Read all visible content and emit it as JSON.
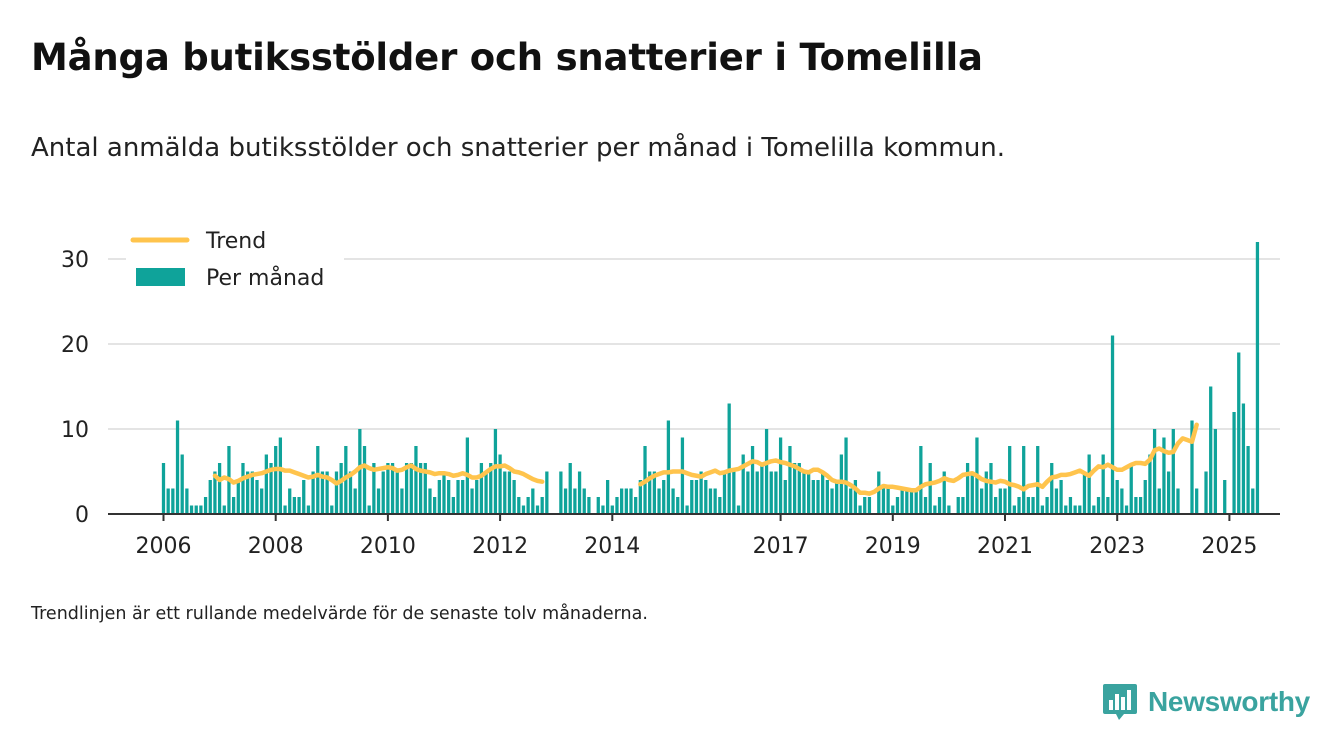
{
  "title": "Många butiksstölder och snatterier i Tomelilla",
  "subtitle": "Antal anmälda butiksstölder och snatterier per månad i Tomelilla kommun.",
  "footnote": "Trendlinjen är ett rullande medelvärde för de senaste tolv månaderna.",
  "brand": {
    "name": "Newsworthy",
    "color": "#3aa39f"
  },
  "colors": {
    "bars": "#0fa39a",
    "trend": "#ffc44d",
    "grid": "#dcdcdc",
    "axis": "#333333"
  },
  "chart_data": {
    "type": "bar",
    "start_month": "2006-01",
    "x_ticks": [
      "2006",
      "2008",
      "2010",
      "2012",
      "2014",
      "2017",
      "2019",
      "2021",
      "2023",
      "2025"
    ],
    "ylim": [
      0,
      32
    ],
    "y_ticks": [
      0,
      10,
      20,
      30
    ],
    "grid": "horizontal",
    "legend_position": "top-left",
    "series": [
      {
        "name": "Per månad",
        "type": "bar",
        "values": [
          6,
          3,
          3,
          11,
          7,
          3,
          1,
          1,
          1,
          2,
          4,
          5,
          6,
          1,
          8,
          2,
          4,
          6,
          5,
          5,
          4,
          3,
          7,
          6,
          8,
          9,
          1,
          3,
          2,
          2,
          4,
          1,
          5,
          8,
          5,
          5,
          1,
          5,
          6,
          8,
          5,
          3,
          10,
          8,
          1,
          6,
          3,
          5,
          6,
          6,
          5,
          3,
          6,
          6,
          8,
          6,
          6,
          3,
          2,
          4,
          5,
          4,
          2,
          4,
          4,
          9,
          3,
          4,
          6,
          5,
          6,
          10,
          7,
          5,
          5,
          4,
          2,
          1,
          2,
          3,
          1,
          2,
          5,
          0,
          0,
          5,
          3,
          6,
          3,
          5,
          3,
          2,
          0,
          2,
          1,
          4,
          1,
          2,
          3,
          3,
          3,
          2,
          4,
          8,
          5,
          5,
          3,
          4,
          11,
          3,
          2,
          9,
          1,
          4,
          4,
          5,
          4,
          3,
          3,
          2,
          5,
          13,
          5,
          1,
          7,
          5,
          8,
          5,
          6,
          10,
          5,
          5,
          9,
          4,
          8,
          6,
          6,
          5,
          5,
          4,
          4,
          5,
          4,
          3,
          4,
          7,
          9,
          3,
          4,
          1,
          2,
          2,
          0,
          5,
          3,
          3,
          1,
          2,
          3,
          3,
          3,
          3,
          8,
          2,
          6,
          1,
          2,
          5,
          1,
          0,
          2,
          2,
          6,
          5,
          9,
          3,
          5,
          6,
          2,
          3,
          3,
          8,
          1,
          2,
          8,
          2,
          2,
          8,
          1,
          2,
          6,
          3,
          4,
          1,
          2,
          1,
          1,
          5,
          7,
          1,
          2,
          7,
          2,
          21,
          4,
          3,
          1,
          6,
          2,
          2,
          4,
          7,
          10,
          3,
          9,
          5,
          10,
          3,
          0,
          0,
          11,
          3,
          0,
          5,
          15,
          10,
          0,
          4,
          0,
          12,
          19,
          13,
          8,
          3,
          32
        ]
      },
      {
        "name": "Trend",
        "type": "line",
        "values": [
          null,
          null,
          null,
          null,
          null,
          null,
          null,
          null,
          null,
          null,
          null,
          4.5,
          4.0,
          4.3,
          4.1,
          3.7,
          3.9,
          4.2,
          4.4,
          4.6,
          4.7,
          4.8,
          5.0,
          5.2,
          5.3,
          5.3,
          5.1,
          5.1,
          4.9,
          4.7,
          4.5,
          4.3,
          4.4,
          4.6,
          4.4,
          4.3,
          4.0,
          3.6,
          3.9,
          4.3,
          4.6,
          5.0,
          5.5,
          5.7,
          5.4,
          5.2,
          5.3,
          5.4,
          5.5,
          5.4,
          5.1,
          5.2,
          5.5,
          5.7,
          5.3,
          5.1,
          5.0,
          4.9,
          4.7,
          4.8,
          4.8,
          4.7,
          4.5,
          4.6,
          4.8,
          4.6,
          4.3,
          4.3,
          4.5,
          4.9,
          5.3,
          5.6,
          5.6,
          5.7,
          5.4,
          5.0,
          4.9,
          4.7,
          4.4,
          4.1,
          3.9,
          3.8,
          null,
          null,
          null,
          null,
          null,
          null,
          null,
          null,
          null,
          null,
          null,
          null,
          null,
          null,
          null,
          null,
          null,
          null,
          null,
          null,
          3.5,
          3.8,
          4.2,
          4.5,
          4.7,
          4.9,
          4.9,
          5.0,
          5.0,
          5.0,
          4.8,
          4.6,
          4.5,
          4.4,
          4.7,
          4.9,
          5.1,
          4.8,
          4.9,
          5.1,
          5.2,
          5.3,
          5.6,
          5.9,
          6.2,
          6.1,
          5.8,
          6.0,
          6.2,
          6.3,
          6.1,
          6.0,
          5.8,
          5.6,
          5.3,
          5.0,
          4.9,
          5.2,
          5.2,
          4.9,
          4.5,
          4.0,
          3.8,
          3.8,
          3.7,
          3.4,
          3.0,
          2.5,
          2.5,
          2.4,
          2.6,
          3.0,
          3.3,
          3.2,
          3.2,
          3.1,
          3.0,
          2.9,
          2.8,
          2.8,
          3.2,
          3.5,
          3.6,
          3.7,
          3.9,
          4.2,
          4.0,
          3.9,
          4.2,
          4.6,
          4.7,
          4.8,
          4.5,
          4.1,
          3.9,
          3.8,
          3.7,
          3.9,
          3.8,
          3.5,
          3.4,
          3.2,
          2.9,
          3.3,
          3.4,
          3.5,
          3.2,
          3.8,
          4.3,
          4.4,
          4.6,
          4.6,
          4.7,
          4.9,
          5.1,
          4.8,
          4.5,
          5.1,
          5.6,
          5.5,
          5.8,
          5.5,
          5.2,
          5.2,
          5.5,
          5.8,
          6.0,
          6.0,
          5.9,
          6.4,
          7.5,
          7.7,
          7.4,
          7.2,
          7.3,
          8.3,
          8.9,
          8.7,
          8.5,
          10.5
        ]
      }
    ]
  }
}
